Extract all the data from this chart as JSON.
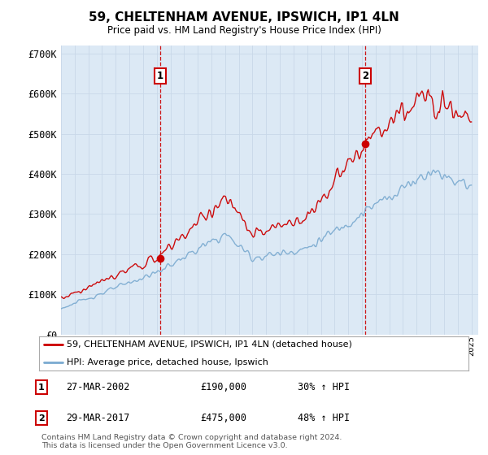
{
  "title": "59, CHELTENHAM AVENUE, IPSWICH, IP1 4LN",
  "subtitle": "Price paid vs. HM Land Registry's House Price Index (HPI)",
  "fig_bg_color": "#ffffff",
  "plot_bg_color": "#dce9f5",
  "ylim": [
    0,
    720000
  ],
  "yticks": [
    0,
    100000,
    200000,
    300000,
    400000,
    500000,
    600000,
    700000
  ],
  "ytick_labels": [
    "£0",
    "£100K",
    "£200K",
    "£300K",
    "£400K",
    "£500K",
    "£600K",
    "£700K"
  ],
  "marker1": {
    "year": 2002.23,
    "value": 190000,
    "label": "1",
    "date": "27-MAR-2002",
    "amount": "£190,000",
    "pct": "30% ↑ HPI"
  },
  "marker2": {
    "year": 2017.23,
    "value": 475000,
    "label": "2",
    "date": "29-MAR-2017",
    "amount": "£475,000",
    "pct": "48% ↑ HPI"
  },
  "legend_line1": "59, CHELTENHAM AVENUE, IPSWICH, IP1 4LN (detached house)",
  "legend_line2": "HPI: Average price, detached house, Ipswich",
  "footer": "Contains HM Land Registry data © Crown copyright and database right 2024.\nThis data is licensed under the Open Government Licence v3.0.",
  "line_color_red": "#cc0000",
  "line_color_blue": "#7aaad0",
  "vline_color": "#cc0000",
  "grid_color": "#c8d8e8",
  "num_points": 400
}
